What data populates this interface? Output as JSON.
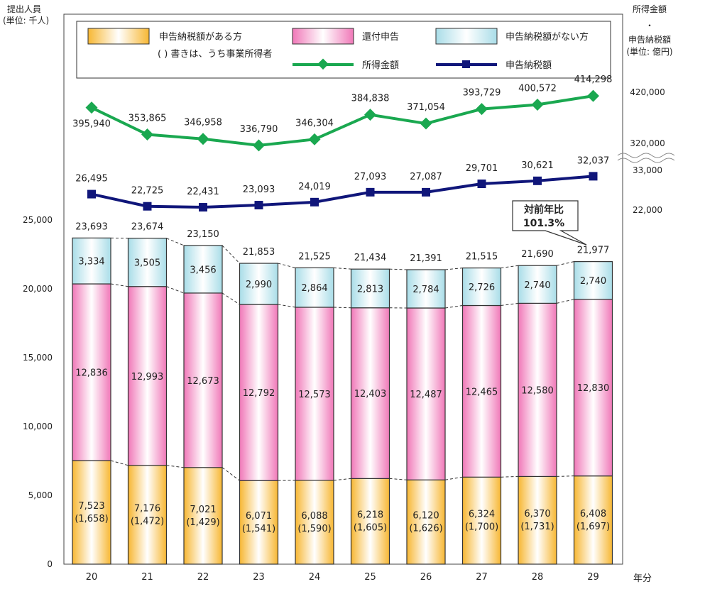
{
  "chart_data": {
    "type": "bar",
    "title": "",
    "left_axis_label": [
      "提出人員",
      "(単位: 千人)"
    ],
    "right_axis_label": [
      "所得金額",
      "・",
      "申告納税額",
      "(単位: 億円)"
    ],
    "xlabel": "年分",
    "ylim": [
      0,
      25000
    ],
    "y_ticks": [
      "0",
      "5,000",
      "10,000",
      "15,000",
      "20,000",
      "25,000"
    ],
    "categories": [
      "20",
      "21",
      "22",
      "23",
      "24",
      "25",
      "26",
      "27",
      "28",
      "29"
    ],
    "series": [
      {
        "name": "申告納税額がある方",
        "values": [
          7523,
          7176,
          7021,
          6071,
          6088,
          6218,
          6120,
          6324,
          6370,
          6408
        ],
        "labels": [
          "7,523",
          "7,176",
          "7,021",
          "6,071",
          "6,088",
          "6,218",
          "6,120",
          "6,324",
          "6,370",
          "6,408"
        ],
        "color_top": "#ffffff",
        "color_side": "#f7b733"
      },
      {
        "name": "還付申告",
        "values": [
          12836,
          12993,
          12673,
          12792,
          12573,
          12403,
          12487,
          12465,
          12580,
          12830
        ],
        "labels": [
          "12,836",
          "12,993",
          "12,673",
          "12,792",
          "12,573",
          "12,403",
          "12,487",
          "12,465",
          "12,580",
          "12,830"
        ],
        "color_top": "#ffffff",
        "color_side": "#f078b8"
      },
      {
        "name": "申告納税額がない方",
        "values": [
          3334,
          3505,
          3456,
          2990,
          2864,
          2813,
          2784,
          2726,
          2740,
          2740
        ],
        "labels": [
          "3,334",
          "3,505",
          "3,456",
          "2,990",
          "2,864",
          "2,813",
          "2,784",
          "2,726",
          "2,740",
          "2,740"
        ],
        "color_top": "#ffffff",
        "color_side": "#a9dde8"
      }
    ],
    "business_income_filers": [
      "(1,658)",
      "(1,472)",
      "(1,429)",
      "(1,541)",
      "(1,590)",
      "(1,605)",
      "(1,626)",
      "(1,700)",
      "(1,731)",
      "(1,697)"
    ],
    "totals": [
      23693,
      23674,
      23150,
      21853,
      21525,
      21434,
      21391,
      21515,
      21690,
      21977
    ],
    "total_labels": [
      "23,693",
      "23,674",
      "23,150",
      "21,853",
      "21,525",
      "21,434",
      "21,391",
      "21,515",
      "21,690",
      "21,977"
    ],
    "income_line": {
      "name": "所得金額",
      "color": "#1aa850",
      "values": [
        395940,
        353865,
        346958,
        336790,
        346304,
        384838,
        371054,
        393729,
        400572,
        414298
      ],
      "labels": [
        "395,940",
        "353,865",
        "346,958",
        "336,790",
        "346,304",
        "384,838",
        "371,054",
        "393,729",
        "400,572",
        "414,298"
      ],
      "axis_ticks": [
        "420,000",
        "320,000"
      ]
    },
    "tax_line": {
      "name": "申告納税額",
      "color": "#10167a",
      "values": [
        26495,
        22725,
        22431,
        23093,
        24019,
        27093,
        27087,
        29701,
        30621,
        32037
      ],
      "labels": [
        "26,495",
        "22,725",
        "22,431",
        "23,093",
        "24,019",
        "27,093",
        "27,087",
        "29,701",
        "30,621",
        "32,037"
      ],
      "axis_ticks": [
        "33,000",
        "22,000"
      ]
    },
    "legend": {
      "placement": "top",
      "note": "( ) 書きは、うち事業所得者"
    },
    "callout": {
      "line1": "対前年比",
      "line2": "101.3%"
    }
  }
}
